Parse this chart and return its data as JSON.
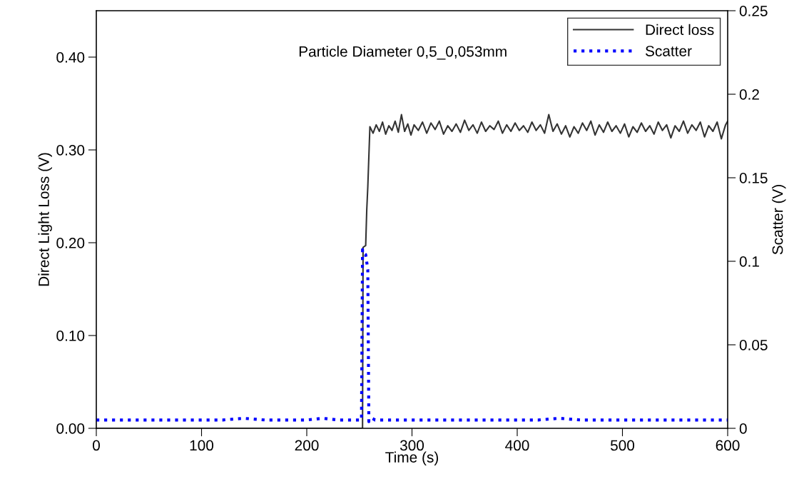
{
  "chart_data": {
    "type": "line",
    "xlabel": "Time (s)",
    "ylabel": "Direct Light Loss (V)",
    "y2label": "Scatter (V)",
    "annotations": [
      "Particle Diameter 0,5_0,053mm"
    ],
    "xlim": [
      0,
      600
    ],
    "xticks": [
      0,
      100,
      200,
      300,
      400,
      500,
      600
    ],
    "ylim": [
      0,
      0.45
    ],
    "yticks": [
      {
        "value": 0,
        "label": "0.00"
      },
      {
        "value": 0.1,
        "label": "0.10"
      },
      {
        "value": 0.2,
        "label": "0.20"
      },
      {
        "value": 0.3,
        "label": "0.30"
      },
      {
        "value": 0.4,
        "label": "0.40"
      }
    ],
    "y2lim": [
      0,
      0.25
    ],
    "y2ticks": [
      0,
      0.05,
      0.1,
      0.15,
      0.2,
      0.25
    ],
    "legend": "top right",
    "grid": false,
    "series": [
      {
        "name": "Direct loss",
        "color": "#333333",
        "line_style": "solid",
        "x": [
          0,
          100,
          200,
          230,
          253,
          253.5,
          256,
          257,
          258,
          260,
          263,
          266,
          269,
          272,
          275,
          278,
          281,
          284,
          287,
          290,
          293,
          296,
          299,
          302,
          306,
          310,
          314,
          318,
          322,
          326,
          330,
          334,
          338,
          342,
          346,
          350,
          354,
          358,
          362,
          366,
          370,
          374,
          378,
          382,
          386,
          390,
          394,
          398,
          402,
          406,
          410,
          414,
          418,
          422,
          426,
          430,
          434,
          438,
          442,
          446,
          450,
          454,
          458,
          462,
          466,
          470,
          474,
          478,
          482,
          486,
          490,
          494,
          498,
          502,
          506,
          510,
          514,
          518,
          522,
          526,
          530,
          534,
          538,
          542,
          546,
          550,
          554,
          558,
          562,
          566,
          570,
          574,
          578,
          582,
          586,
          590,
          594,
          598,
          600
        ],
        "values": [
          0,
          0,
          0,
          0,
          0,
          0.195,
          0.197,
          0.235,
          0.26,
          0.325,
          0.318,
          0.327,
          0.32,
          0.33,
          0.317,
          0.326,
          0.321,
          0.331,
          0.319,
          0.338,
          0.32,
          0.328,
          0.316,
          0.327,
          0.321,
          0.33,
          0.318,
          0.329,
          0.322,
          0.331,
          0.317,
          0.326,
          0.32,
          0.328,
          0.319,
          0.332,
          0.321,
          0.327,
          0.318,
          0.33,
          0.32,
          0.326,
          0.322,
          0.331,
          0.318,
          0.327,
          0.32,
          0.329,
          0.321,
          0.326,
          0.319,
          0.33,
          0.321,
          0.327,
          0.318,
          0.338,
          0.32,
          0.328,
          0.317,
          0.326,
          0.314,
          0.325,
          0.318,
          0.329,
          0.321,
          0.331,
          0.316,
          0.327,
          0.319,
          0.33,
          0.32,
          0.326,
          0.318,
          0.328,
          0.314,
          0.325,
          0.319,
          0.329,
          0.32,
          0.326,
          0.317,
          0.33,
          0.321,
          0.327,
          0.313,
          0.326,
          0.32,
          0.331,
          0.318,
          0.327,
          0.321,
          0.33,
          0.314,
          0.326,
          0.32,
          0.33,
          0.312,
          0.327,
          0.331
        ]
      },
      {
        "name": "Scatter",
        "color": "#0000ff",
        "line_style": "dotted",
        "axis": "y2",
        "x": [
          0,
          20,
          40,
          60,
          80,
          100,
          120,
          140,
          160,
          180,
          200,
          215,
          230,
          245,
          252,
          253,
          254,
          256,
          258,
          259,
          260,
          262,
          265,
          280,
          300,
          320,
          340,
          360,
          380,
          400,
          420,
          440,
          460,
          480,
          500,
          520,
          540,
          560,
          580,
          600
        ],
        "values": [
          0.005,
          0.005,
          0.005,
          0.005,
          0.005,
          0.005,
          0.005,
          0.006,
          0.005,
          0.005,
          0.005,
          0.006,
          0.005,
          0.005,
          0.005,
          0.107,
          0.105,
          0.104,
          0.095,
          0.004,
          0.005,
          0.006,
          0.005,
          0.005,
          0.005,
          0.005,
          0.005,
          0.005,
          0.005,
          0.005,
          0.005,
          0.006,
          0.005,
          0.005,
          0.005,
          0.005,
          0.005,
          0.005,
          0.005,
          0.005
        ]
      }
    ]
  }
}
